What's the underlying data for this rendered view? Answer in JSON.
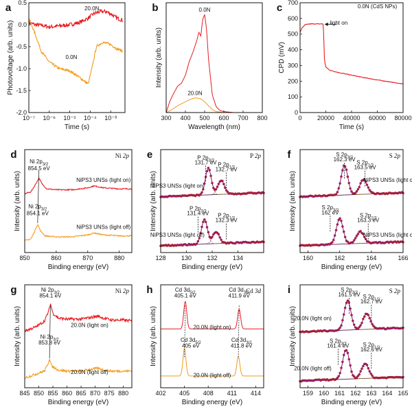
{
  "figure": "XPS and photovoltage characterization panels",
  "colors": {
    "red": "#e8191f",
    "orange": "#f39a1a",
    "fit": "#8a1a86",
    "base": "#1a1a1a",
    "sub": "#c87a1e",
    "point": "#cc2233"
  },
  "chart_data": [
    {
      "id": "a",
      "type": "line",
      "panel_label": "a",
      "xlabel": "Time (s)",
      "ylabel": "Photovoltage (arb. units)",
      "xscale": "log",
      "xlim": [
        1e-07,
        0.005
      ],
      "ylim": [
        -2.0,
        0.5
      ],
      "xticks": [
        1e-07,
        1e-06,
        1e-05,
        0.0001,
        0.001
      ],
      "xtick_labels": [
        "10⁻⁷",
        "10⁻⁶",
        "10⁻⁵",
        "10⁻⁴",
        "10⁻³"
      ],
      "yticks": [
        -2.0,
        -1.5,
        -1.0,
        -0.5,
        0.0,
        0.5
      ],
      "ytick_labels": [
        "-2.0",
        "-1.5",
        "-1.0",
        "-0.5",
        "0.0",
        "0.5"
      ],
      "series": [
        {
          "name": "20.0N",
          "color": "red",
          "noise": 0.09,
          "x": [
            1e-07,
            2e-07,
            5e-07,
            1e-06,
            3e-06,
            1e-05,
            3e-05,
            8e-05,
            0.00015,
            0.0003,
            0.0006,
            0.001,
            0.002,
            0.004
          ],
          "y": [
            0.05,
            0.0,
            -0.02,
            -0.05,
            -0.03,
            0.0,
            0.05,
            0.15,
            0.25,
            0.3,
            0.3,
            0.25,
            0.15,
            0.1
          ]
        },
        {
          "name": "0.0N",
          "color": "orange",
          "noise": 0.06,
          "x": [
            1e-07,
            2e-07,
            4e-07,
            1e-06,
            3e-06,
            1e-05,
            3e-05,
            8e-05,
            0.00012,
            0.0002,
            0.0004,
            0.001,
            0.002,
            0.004
          ],
          "y": [
            0.15,
            -0.2,
            -0.6,
            -0.85,
            -1.0,
            -1.05,
            -1.2,
            -1.35,
            -1.0,
            -0.5,
            -0.4,
            -0.45,
            -0.55,
            -0.6
          ]
        }
      ],
      "annotations": [
        {
          "text": "20.0N",
          "x": 0.00012,
          "y": 0.33
        },
        {
          "text": "0.0N",
          "x": 1.2e-05,
          "y": -0.78
        }
      ]
    },
    {
      "id": "b",
      "type": "line",
      "panel_label": "b",
      "xlabel": "Wavelength (nm)",
      "ylabel": "Intensity (arb. units)",
      "xlim": [
        300,
        800
      ],
      "ylim": [
        0,
        1.12
      ],
      "xticks": [
        300,
        400,
        500,
        600,
        700,
        800
      ],
      "xtick_labels": [
        "300",
        "400",
        "500",
        "600",
        "700",
        "800"
      ],
      "series": [
        {
          "name": "0.0N",
          "color": "red",
          "x": [
            300,
            320,
            340,
            360,
            380,
            400,
            420,
            440,
            460,
            470,
            480,
            490,
            500,
            510,
            520,
            540,
            560,
            580,
            600,
            650,
            700,
            800
          ],
          "y": [
            0.0,
            0.12,
            0.2,
            0.27,
            0.3,
            0.38,
            0.52,
            0.62,
            0.74,
            0.82,
            0.78,
            0.95,
            1.0,
            0.85,
            0.55,
            0.18,
            0.06,
            0.02,
            0.01,
            0.0,
            0.0,
            0.0
          ]
        },
        {
          "name": "20.0N",
          "color": "orange",
          "x": [
            300,
            330,
            360,
            390,
            420,
            450,
            480,
            500,
            520,
            540,
            560,
            600,
            800
          ],
          "y": [
            0.0,
            0.03,
            0.07,
            0.1,
            0.13,
            0.15,
            0.14,
            0.11,
            0.07,
            0.03,
            0.01,
            0.0,
            0.0
          ]
        }
      ],
      "annotations": [
        {
          "text": "0.0N",
          "x": 500,
          "y": 1.03
        },
        {
          "text": "20.0N",
          "x": 450,
          "y": 0.18
        }
      ]
    },
    {
      "id": "c",
      "type": "line",
      "panel_label": "c",
      "xlabel": "Time (s)",
      "ylabel": "CPD (mV)",
      "xlim": [
        0,
        80000
      ],
      "ylim": [
        0,
        700
      ],
      "xticks": [
        0,
        20000,
        40000,
        60000,
        80000
      ],
      "xtick_labels": [
        "0",
        "20000",
        "40000",
        "60000",
        "80000"
      ],
      "yticks": [
        0,
        100,
        200,
        300,
        400,
        500,
        600,
        700
      ],
      "ytick_labels": [
        "0",
        "100",
        "200",
        "300",
        "400",
        "500",
        "600",
        "700"
      ],
      "series": [
        {
          "name": "0.0N (CdS NPs)",
          "color": "red",
          "noise": 4,
          "x": [
            0,
            1500,
            4000,
            8000,
            15000,
            18000,
            18500,
            19000,
            20000,
            23000,
            30000,
            40000,
            50000,
            60000,
            70000,
            80000
          ],
          "y": [
            510,
            540,
            560,
            565,
            565,
            565,
            450,
            330,
            290,
            270,
            255,
            238,
            222,
            208,
            195,
            182
          ]
        }
      ],
      "annotations": [
        {
          "text": "0.0N (CdS NPs)",
          "x": 60000,
          "y": 665
        },
        {
          "text": "light on",
          "x": 30000,
          "y": 560
        }
      ]
    },
    {
      "id": "d",
      "type": "line",
      "panel_label": "d",
      "corner_label": "Ni 2p",
      "xlabel": "Binding energy (eV)",
      "ylabel": "Intensity (arb. units)",
      "xlim": [
        850,
        884
      ],
      "ylim": [
        0,
        1.05
      ],
      "xticks": [
        850,
        860,
        870,
        880
      ],
      "xtick_labels": [
        "850",
        "860",
        "870",
        "880"
      ],
      "series": [
        {
          "name": "NiPS3 UNSs (light on)",
          "color": "red",
          "noise": 0.012,
          "offset": 0.6,
          "x": [
            850,
            852,
            853.5,
            854.5,
            855.5,
            857,
            860,
            865,
            870,
            872,
            875,
            880,
            884
          ],
          "y": [
            0.0,
            0.02,
            0.1,
            0.16,
            0.1,
            0.05,
            0.04,
            0.04,
            0.06,
            0.08,
            0.06,
            0.05,
            0.05
          ]
        },
        {
          "name": "NiPS3 UNSs (light off)",
          "color": "orange",
          "noise": 0.012,
          "offset": 0.12,
          "x": [
            850,
            852,
            853.2,
            854.1,
            855,
            856.5,
            860,
            865,
            870,
            872,
            875,
            880,
            884
          ],
          "y": [
            0.0,
            0.02,
            0.1,
            0.17,
            0.1,
            0.05,
            0.04,
            0.04,
            0.06,
            0.08,
            0.06,
            0.05,
            0.05
          ]
        }
      ],
      "annotations": [
        {
          "text": "Ni 2p3/2",
          "x": 854.5,
          "y": 0.91
        },
        {
          "text": "854.5 eV",
          "x": 854.5,
          "y": 0.84
        },
        {
          "text": "Ni 2p3/2",
          "x": 854.1,
          "y": 0.45
        },
        {
          "text": "854.1 eV",
          "x": 854.1,
          "y": 0.38
        },
        {
          "text": "NiPS3 UNSs (light on)",
          "x": 875,
          "y": 0.72
        },
        {
          "text": "NiPS3 UNSs (light off)",
          "x": 875,
          "y": 0.24
        }
      ]
    },
    {
      "id": "e",
      "type": "fit",
      "panel_label": "e",
      "corner_label": "P 2p",
      "xlabel": "Binding energy (eV)",
      "ylabel": "Intensity (arb. units)",
      "xlim": [
        128,
        136
      ],
      "ylim": [
        0,
        1.05
      ],
      "xticks": [
        128,
        130,
        132,
        134
      ],
      "xtick_labels": [
        "128",
        "130",
        "132",
        "134"
      ],
      "series": [
        {
          "name": "NiPS3 UNSs (light on)",
          "offset": 0.55,
          "peaks": [
            [
              131.7,
              0.27,
              0.55
            ],
            [
              132.7,
              0.14,
              0.6
            ]
          ]
        },
        {
          "name": "NiPS3 UNSs (light off)",
          "offset": 0.05,
          "peaks": [
            [
              131.4,
              0.25,
              0.55
            ],
            [
              132.3,
              0.12,
              0.6
            ]
          ]
        }
      ],
      "annotations": [
        {
          "text": "P 2p3/2",
          "x": 131.5,
          "y": 0.95
        },
        {
          "text": "131.7 eV",
          "x": 131.5,
          "y": 0.9
        },
        {
          "text": "P 2p1/2",
          "x": 133.1,
          "y": 0.88
        },
        {
          "text": "132.7 eV",
          "x": 133.1,
          "y": 0.83
        },
        {
          "text": "NiPS3 UNSs (light on)",
          "x": 129.3,
          "y": 0.66
        },
        {
          "text": "P 2p3/2",
          "x": 130.9,
          "y": 0.43
        },
        {
          "text": "131.4 eV",
          "x": 130.9,
          "y": 0.38
        },
        {
          "text": "P 2p1/2",
          "x": 133.1,
          "y": 0.36
        },
        {
          "text": "132.3 eV",
          "x": 133.1,
          "y": 0.31
        },
        {
          "text": "NiPS3 UNSs (light off)",
          "x": 129.3,
          "y": 0.16
        }
      ]
    },
    {
      "id": "f",
      "type": "fit",
      "panel_label": "f",
      "corner_label": "S 2p",
      "xlabel": "Binding energy (eV)",
      "ylabel": "Intensity (arb. units)",
      "xlim": [
        159.5,
        166
      ],
      "ylim": [
        0,
        1.05
      ],
      "xticks": [
        160,
        162,
        164,
        166
      ],
      "xtick_labels": [
        "160",
        "162",
        "164",
        "166"
      ],
      "series": [
        {
          "name": "NiPS3 UNSs (light on)",
          "offset": 0.55,
          "peaks": [
            [
              162.3,
              0.3,
              0.5
            ],
            [
              163.5,
              0.15,
              0.55
            ]
          ]
        },
        {
          "name": "NiPS3 UNSs (light off)",
          "offset": 0.05,
          "peaks": [
            [
              162.0,
              0.26,
              0.5
            ],
            [
              163.3,
              0.12,
              0.55
            ]
          ]
        }
      ],
      "annotations": [
        {
          "text": "S 2p3/2",
          "x": 162.3,
          "y": 0.98
        },
        {
          "text": "162.3 eV",
          "x": 162.3,
          "y": 0.93
        },
        {
          "text": "S 2p1/2",
          "x": 163.6,
          "y": 0.9
        },
        {
          "text": "163.5 eV",
          "x": 163.6,
          "y": 0.85
        },
        {
          "text": "NiPS3 UNSs (light on)",
          "x": 165.2,
          "y": 0.72
        },
        {
          "text": "S 2p3/2",
          "x": 161.4,
          "y": 0.44
        },
        {
          "text": "162 eV",
          "x": 161.4,
          "y": 0.39
        },
        {
          "text": "S 2p1/2",
          "x": 163.8,
          "y": 0.36
        },
        {
          "text": "163.3 eV",
          "x": 163.8,
          "y": 0.31
        },
        {
          "text": "NiPS3 UNSs (light off)",
          "x": 165.2,
          "y": 0.16
        }
      ]
    },
    {
      "id": "g",
      "type": "line",
      "panel_label": "g",
      "corner_label": "Ni 2p",
      "xlabel": "Binding energy (eV)",
      "ylabel": "Intensity (arb. units)",
      "xlim": [
        845,
        883
      ],
      "ylim": [
        0,
        1.05
      ],
      "xticks": [
        845,
        850,
        855,
        860,
        865,
        870,
        875,
        880
      ],
      "xtick_labels": [
        "845",
        "850",
        "855",
        "860",
        "865",
        "870",
        "875",
        "880"
      ],
      "series": [
        {
          "name": "20.0N (light on)",
          "color": "red",
          "noise": 0.03,
          "offset": 0.58,
          "x": [
            845,
            849,
            852,
            853.5,
            854.1,
            855,
            857,
            860,
            865,
            871,
            873,
            876,
            880,
            883
          ],
          "y": [
            0.0,
            0.04,
            0.1,
            0.2,
            0.28,
            0.18,
            0.13,
            0.12,
            0.12,
            0.15,
            0.13,
            0.11,
            0.11,
            0.1
          ]
        },
        {
          "name": "20.0N (light off)",
          "color": "orange",
          "noise": 0.025,
          "offset": 0.1,
          "x": [
            845,
            849,
            852,
            853.2,
            853.8,
            854.6,
            857,
            860,
            865,
            871,
            873,
            876,
            880,
            883
          ],
          "y": [
            0.0,
            0.04,
            0.07,
            0.14,
            0.2,
            0.12,
            0.08,
            0.07,
            0.07,
            0.1,
            0.08,
            0.07,
            0.07,
            0.07
          ]
        }
      ],
      "annotations": [
        {
          "text": "Ni 2p3/2",
          "x": 854.1,
          "y": 0.98
        },
        {
          "text": "854.1 eV",
          "x": 854.1,
          "y": 0.92
        },
        {
          "text": "20.0N (light on)",
          "x": 868,
          "y": 0.62
        },
        {
          "text": "Ni 2p3/2",
          "x": 853.8,
          "y": 0.5
        },
        {
          "text": "853.8 eV",
          "x": 853.8,
          "y": 0.44
        },
        {
          "text": "20.0N (light off)",
          "x": 868,
          "y": 0.14
        }
      ]
    },
    {
      "id": "h",
      "type": "line",
      "panel_label": "h",
      "corner_label": "Cd 3d",
      "xlabel": "Binding energy (eV)",
      "ylabel": "Intensity (arb. units)",
      "xlim": [
        402,
        415
      ],
      "ylim": [
        0,
        1.05
      ],
      "xticks": [
        402,
        405,
        408,
        411,
        414
      ],
      "xtick_labels": [
        "402",
        "405",
        "408",
        "411",
        "414"
      ],
      "series": [
        {
          "name": "20.0N (light on)",
          "color": "red",
          "offset": 0.58,
          "peaks": [
            [
              405.1,
              0.28,
              0.45
            ],
            [
              411.9,
              0.2,
              0.45
            ]
          ]
        },
        {
          "name": "20.0N (light off)",
          "color": "orange",
          "offset": 0.1,
          "peaks": [
            [
              405.0,
              0.28,
              0.45
            ],
            [
              411.8,
              0.2,
              0.45
            ]
          ]
        }
      ],
      "annotations": [
        {
          "text": "Cd 3d5/2",
          "x": 405.1,
          "y": 0.98
        },
        {
          "text": "405.1 eV",
          "x": 405.1,
          "y": 0.92
        },
        {
          "text": "Cd 3d3/2",
          "x": 411.9,
          "y": 0.98
        },
        {
          "text": "411.9 eV",
          "x": 411.9,
          "y": 0.92
        },
        {
          "text": "20.0N (light on)",
          "x": 408.5,
          "y": 0.6
        },
        {
          "text": "Cd 3d5/2",
          "x": 405.8,
          "y": 0.47
        },
        {
          "text": "405 eV",
          "x": 405.8,
          "y": 0.41
        },
        {
          "text": "Cd 3d3/2",
          "x": 412.2,
          "y": 0.47
        },
        {
          "text": "411.8 eV",
          "x": 412.2,
          "y": 0.41
        },
        {
          "text": "20.0N (light off)",
          "x": 408.5,
          "y": 0.11
        }
      ]
    },
    {
      "id": "i",
      "type": "fit",
      "panel_label": "i",
      "corner_label": "S 2p",
      "xlabel": "Binding energy (eV)",
      "ylabel": "Intensity (arb. units)",
      "xlim": [
        158.5,
        165
      ],
      "ylim": [
        0,
        1.05
      ],
      "xticks": [
        159,
        160,
        161,
        162,
        163,
        164,
        165
      ],
      "xtick_labels": [
        "159",
        "160",
        "161",
        "162",
        "163",
        "164",
        "165"
      ],
      "series": [
        {
          "name": "20.0N (light on)",
          "offset": 0.55,
          "peaks": [
            [
              161.5,
              0.3,
              0.5
            ],
            [
              162.7,
              0.16,
              0.55
            ]
          ]
        },
        {
          "name": "20.0N (light off)",
          "offset": 0.05,
          "peaks": [
            [
              161.4,
              0.3,
              0.5
            ],
            [
              162.6,
              0.15,
              0.55
            ]
          ]
        }
      ],
      "annotations": [
        {
          "text": "S 2p3/2",
          "x": 161.6,
          "y": 0.98
        },
        {
          "text": "161.5 eV",
          "x": 161.6,
          "y": 0.93
        },
        {
          "text": "S 2p1/2",
          "x": 163.0,
          "y": 0.91
        },
        {
          "text": "162.7 eV",
          "x": 163.0,
          "y": 0.86
        },
        {
          "text": "20.0N (light on)",
          "x": 159.3,
          "y": 0.69
        },
        {
          "text": "S 2p3/2",
          "x": 160.9,
          "y": 0.46
        },
        {
          "text": "161.4 eV",
          "x": 160.9,
          "y": 0.41
        },
        {
          "text": "S 2p1/2",
          "x": 163.0,
          "y": 0.42
        },
        {
          "text": "162.6 eV",
          "x": 163.0,
          "y": 0.37
        },
        {
          "text": "20.0N (light off)",
          "x": 159.3,
          "y": 0.18
        }
      ]
    }
  ]
}
